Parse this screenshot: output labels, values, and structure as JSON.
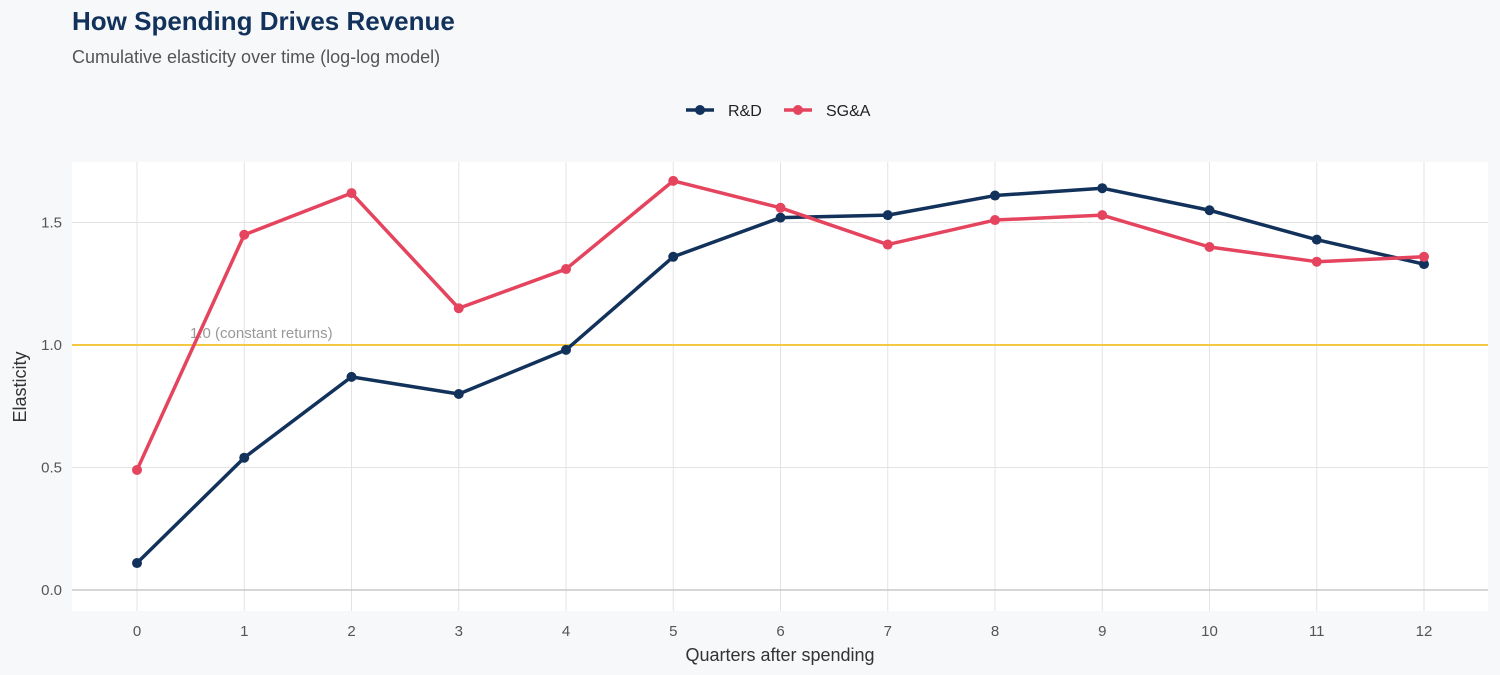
{
  "chart_data": {
    "type": "line",
    "title": "How Spending Drives Revenue",
    "subtitle": "Cumulative elasticity over time (log-log model)",
    "xlabel": "Quarters after spending",
    "ylabel": "Elasticity",
    "x": [
      0,
      1,
      2,
      3,
      4,
      5,
      6,
      7,
      8,
      9,
      10,
      11,
      12
    ],
    "xlim": [
      -0.6,
      12.6
    ],
    "ylim": [
      -0.08,
      1.75
    ],
    "yticks": [
      0.0,
      0.5,
      1.0,
      1.5
    ],
    "ytick_labels": [
      "0.0",
      "0.5",
      "1.0",
      "1.5"
    ],
    "grid": true,
    "legend_position": "top-center",
    "series": [
      {
        "name": "R&D",
        "color": "#12325c",
        "values": [
          0.11,
          0.54,
          0.87,
          0.8,
          0.98,
          1.36,
          1.52,
          1.53,
          1.61,
          1.64,
          1.55,
          1.43,
          1.33
        ]
      },
      {
        "name": "SG&A",
        "color": "#e5445e",
        "values": [
          0.49,
          1.45,
          1.62,
          1.15,
          1.31,
          1.67,
          1.56,
          1.41,
          1.51,
          1.53,
          1.4,
          1.34,
          1.36
        ]
      }
    ],
    "reference_line": {
      "y": 1.0,
      "label": "1.0 (constant returns)",
      "color": "#f5c842"
    }
  }
}
